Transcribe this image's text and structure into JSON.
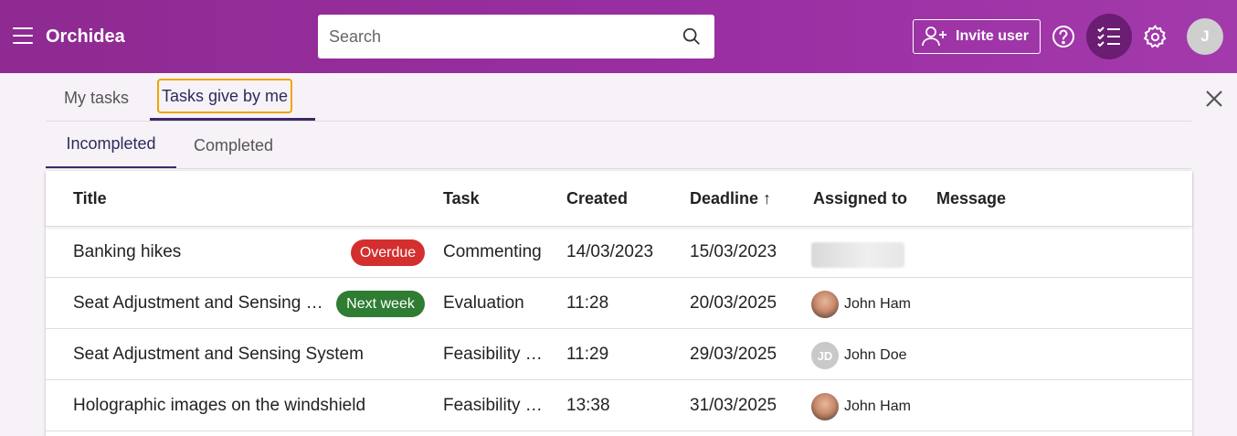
{
  "header": {
    "app_title": "Orchidea",
    "search_placeholder": "Search",
    "invite_label": "Invite user",
    "user_initial": "J",
    "accent_color": "#9a2fa3"
  },
  "tabs": {
    "primary": [
      {
        "label": "My tasks",
        "active": false
      },
      {
        "label": "Tasks give by me",
        "active": true
      }
    ],
    "secondary": [
      {
        "label": "Incompleted",
        "active": true
      },
      {
        "label": "Completed",
        "active": false
      }
    ]
  },
  "table": {
    "headers": {
      "title": "Title",
      "task": "Task",
      "created": "Created",
      "deadline": "Deadline",
      "deadline_sort_icon": "↑",
      "assigned_to": "Assigned to",
      "message": "Message"
    },
    "rows": [
      {
        "title": "Banking hikes",
        "badge": "Overdue",
        "badge_color": "#d32f2f",
        "task": "Commenting",
        "created": "14/03/2023",
        "deadline": "15/03/2023",
        "assignee": "",
        "avatar": "blurred",
        "message": ""
      },
      {
        "title": "Seat Adjustment and Sensing System",
        "badge": "Next week",
        "badge_color": "#2e7d32",
        "task": "Evaluation",
        "created": "11:28",
        "deadline": "20/03/2025",
        "assignee": "John Ham",
        "avatar": "photo",
        "message": ""
      },
      {
        "title": "Seat Adjustment and Sensing System",
        "badge": "",
        "task": "Feasibility study",
        "created": "11:29",
        "deadline": "29/03/2025",
        "assignee": "John Doe",
        "avatar": "initials",
        "avatar_initials": "JD",
        "message": ""
      },
      {
        "title": "Holographic images on the windshield",
        "badge": "",
        "task": "Feasibility study",
        "created": "13:38",
        "deadline": "31/03/2025",
        "assignee": "John Ham",
        "avatar": "photo",
        "message": ""
      }
    ]
  }
}
